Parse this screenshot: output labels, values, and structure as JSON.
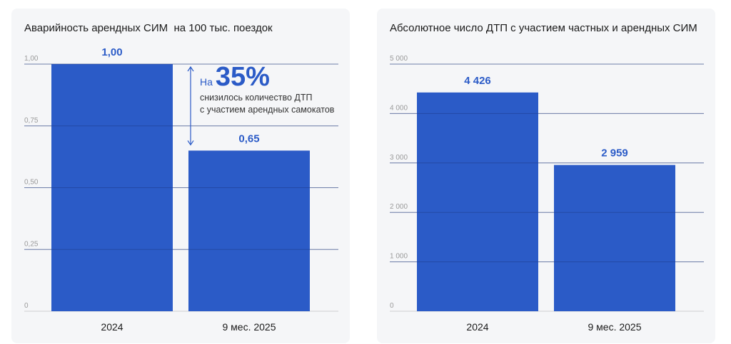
{
  "annotation": {
    "prefix": "На",
    "value": "35%",
    "line1": "снизилось количество ДТП",
    "line2": "с участием арендных самокатов"
  },
  "chart_data": [
    {
      "type": "bar",
      "title": "Аварийность арендных СИМ  на 100 тыс. поездок",
      "categories": [
        "2024",
        "9 мес. 2025"
      ],
      "values": [
        1.0,
        0.65
      ],
      "value_labels": [
        "1,00",
        "0,65"
      ],
      "yticks": [
        0,
        0.25,
        0.5,
        0.75,
        1.0
      ],
      "ytick_labels": [
        "0",
        "0,25",
        "0,50",
        "0,75",
        "1,00"
      ],
      "ylim": [
        0,
        1.0
      ],
      "grid": true,
      "bar_color": "#2b5bc7",
      "label_color": "#2b5bc7"
    },
    {
      "type": "bar",
      "title": "Абсолютное число ДТП с участием частных и арендных СИМ",
      "categories": [
        "2024",
        "9 мес. 2025"
      ],
      "values": [
        4426,
        2959
      ],
      "value_labels": [
        "4 426",
        "2 959"
      ],
      "yticks": [
        0,
        1000,
        2000,
        3000,
        4000,
        5000
      ],
      "ytick_labels": [
        "0",
        "1 000",
        "2 000",
        "3 000",
        "4 000",
        "5 000"
      ],
      "ylim": [
        0,
        5000
      ],
      "grid": true,
      "bar_color": "#2b5bc7",
      "label_color": "#2b5bc7"
    }
  ]
}
